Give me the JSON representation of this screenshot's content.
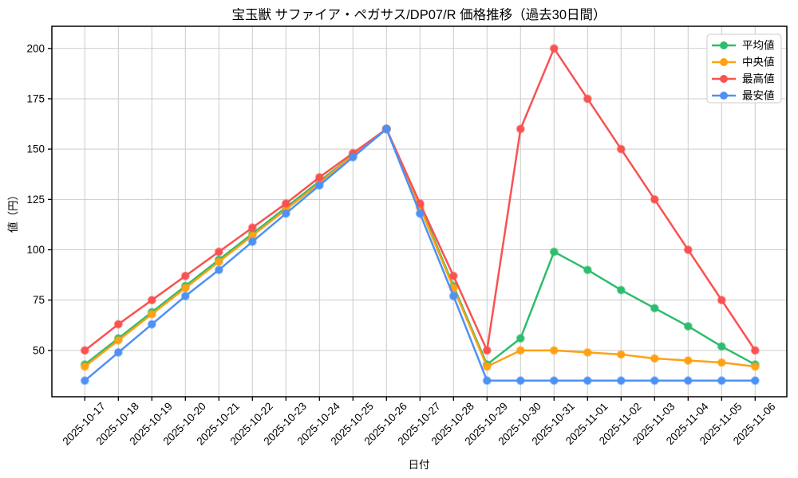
{
  "title": "宝玉獣 サファイア・ペガサス/DP07/R 価格推移（過去30日間）",
  "chart_data": {
    "type": "line",
    "title": "宝玉獣 サファイア・ペガサス/DP07/R 価格推移（過去30日間）",
    "xlabel": "日付",
    "ylabel": "値（円）",
    "x": [
      "2025-10-17",
      "2025-10-18",
      "2025-10-19",
      "2025-10-20",
      "2025-10-21",
      "2025-10-22",
      "2025-10-23",
      "2025-10-24",
      "2025-10-25",
      "2025-10-26",
      "2025-10-27",
      "2025-10-28",
      "2025-10-29",
      "2025-10-30",
      "2025-10-31",
      "2025-11-01",
      "2025-11-02",
      "2025-11-03",
      "2025-11-04",
      "2025-11-05",
      "2025-11-06"
    ],
    "series": [
      {
        "name": "平均値",
        "key": "average",
        "color": "#2dbd6e",
        "values": [
          43,
          56,
          69,
          82,
          95,
          108,
          121,
          134,
          147,
          160,
          122,
          82,
          43,
          56,
          99,
          90,
          80,
          71,
          62,
          52,
          43
        ]
      },
      {
        "name": "中央値",
        "key": "median",
        "color": "#ffa114",
        "values": [
          42,
          55,
          68,
          81,
          94,
          107,
          120,
          133,
          147,
          160,
          121,
          81,
          42,
          50,
          50,
          49,
          48,
          46,
          45,
          44,
          42
        ]
      },
      {
        "name": "最高値",
        "key": "max",
        "color": "#f95250",
        "values": [
          50,
          63,
          75,
          87,
          99,
          111,
          123,
          136,
          148,
          160,
          123,
          87,
          50,
          160,
          200,
          175,
          150,
          125,
          100,
          75,
          50
        ]
      },
      {
        "name": "最安値",
        "key": "min",
        "color": "#4e91f5",
        "values": [
          35,
          49,
          63,
          77,
          90,
          104,
          118,
          132,
          146,
          160,
          118,
          77,
          35,
          35,
          35,
          35,
          35,
          35,
          35,
          35,
          35
        ]
      }
    ],
    "ylim": [
      27,
      211
    ],
    "yticks": [
      50,
      75,
      100,
      125,
      150,
      175,
      200
    ],
    "grid": true,
    "grid_color": "#cccccc",
    "spine_color": "#000000",
    "background": "#ffffff",
    "legend_position": "upper right"
  }
}
